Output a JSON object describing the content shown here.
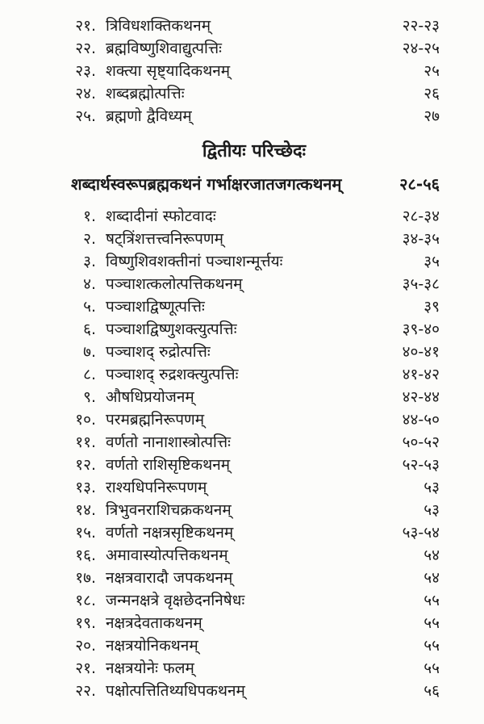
{
  "page": {
    "background": "#fcfcfa",
    "text_color": "#1c1c1c"
  },
  "toc_top": {
    "items": [
      {
        "num": "२१.",
        "title": "त्रिविधशक्तिकथनम्",
        "pages": "२२-२३"
      },
      {
        "num": "२२.",
        "title": "ब्रह्मविष्णुशिवाद्युत्पत्तिः",
        "pages": "२४-२५"
      },
      {
        "num": "२३.",
        "title": "शक्त्या सृष्ट्यादिकथनम्",
        "pages": "२५"
      },
      {
        "num": "२४.",
        "title": "शब्दब्रह्मोत्पत्तिः",
        "pages": "२६"
      },
      {
        "num": "२५.",
        "title": "ब्रह्मणो द्वैविध्यम्",
        "pages": "२७"
      }
    ]
  },
  "chapter": {
    "heading": "द्वितीयः परिच्छेदः"
  },
  "section": {
    "title": "शब्दार्थस्वरूपब्रह्मकथनं गर्भाक्षरजातजगत्कथनम्",
    "pages": "२८-५६"
  },
  "toc_main": {
    "items": [
      {
        "num": "१.",
        "title": "शब्दादीनां स्फोटवादः",
        "pages": "२८-३४"
      },
      {
        "num": "२.",
        "title": "षट्त्रिंशत्तत्त्वनिरूपणम्",
        "pages": "३४-३५"
      },
      {
        "num": "३.",
        "title": "विष्णुशिवशक्तीनां पञ्चाशन्मूर्त्तयः",
        "pages": "३५"
      },
      {
        "num": "४.",
        "title": "पञ्चाशत्कलोत्पत्तिकथनम्",
        "pages": "३५-३८"
      },
      {
        "num": "५.",
        "title": "पञ्चाशद्विष्णूत्पत्तिः",
        "pages": "३९"
      },
      {
        "num": "६.",
        "title": "पञ्चाशद्विष्णुशक्त्युत्पत्तिः",
        "pages": "३९-४०"
      },
      {
        "num": "७.",
        "title": "पञ्चाशद् रुद्रोत्पत्तिः",
        "pages": "४०-४१"
      },
      {
        "num": "८.",
        "title": "पञ्चाशद् रुद्रशक्त्युत्पत्तिः",
        "pages": "४१-४२"
      },
      {
        "num": "९.",
        "title": "औषधिप्रयोजनम्",
        "pages": "४२-४४"
      },
      {
        "num": "१०.",
        "title": "परमब्रह्मनिरूपणम्",
        "pages": "४४-५०"
      },
      {
        "num": "११.",
        "title": "वर्णतो नानाशास्त्रोत्पत्तिः",
        "pages": "५०-५२"
      },
      {
        "num": "१२.",
        "title": "वर्णतो राशिसृष्टिकथनम्",
        "pages": "५२-५३"
      },
      {
        "num": "१३.",
        "title": "राश्यधिपनिरूपणम्",
        "pages": "५३"
      },
      {
        "num": "१४.",
        "title": "त्रिभुवनराशिचक्रकथनम्",
        "pages": "५३"
      },
      {
        "num": "१५.",
        "title": "वर्णतो नक्षत्रसृष्टिकथनम्",
        "pages": "५३-५४"
      },
      {
        "num": "१६.",
        "title": "अमावास्योत्पत्तिकथनम्",
        "pages": "५४"
      },
      {
        "num": "१७.",
        "title": "नक्षत्रवारादौ जपकथनम्",
        "pages": "५४"
      },
      {
        "num": "१८.",
        "title": "जन्मनक्षत्रे वृक्षछेदननिषेधः",
        "pages": "५५"
      },
      {
        "num": "१९.",
        "title": "नक्षत्रदेवताकथनम्",
        "pages": "५५"
      },
      {
        "num": "२०.",
        "title": "नक्षत्रयोनिकथनम्",
        "pages": "५५"
      },
      {
        "num": "२१.",
        "title": "नक्षत्रयोनेः फलम्",
        "pages": "५५"
      },
      {
        "num": "२२.",
        "title": "पक्षोत्पत्तितिथ्यधिपकथनम्",
        "pages": "५६"
      }
    ]
  }
}
